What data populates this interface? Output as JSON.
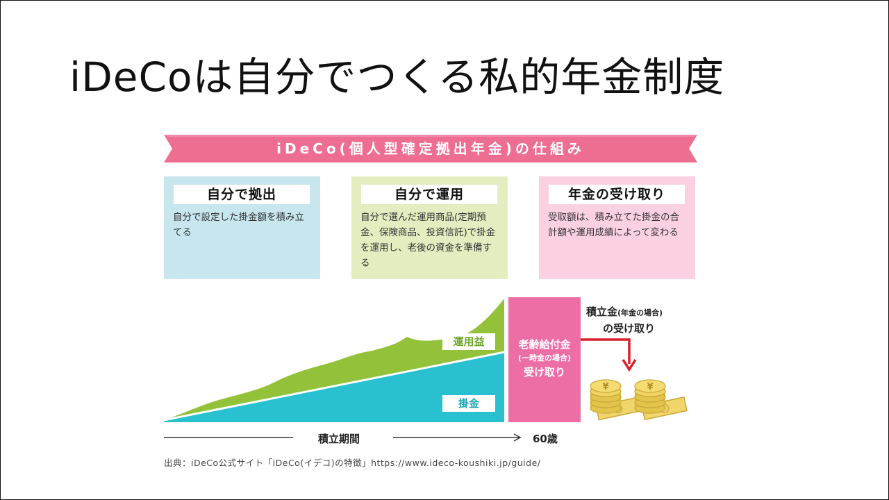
{
  "slide": {
    "title": "iDeCoは自分でつくる私的年金制度"
  },
  "diagram": {
    "banner": "iDeCo(個人型確定拠出年金)の仕組み",
    "boxes": [
      {
        "heading": "自分で拠出",
        "body": "自分で設定した掛金額を積み立てる"
      },
      {
        "heading": "自分で運用",
        "body": "自分で選んだ運用商品(定期預金、保険商品、投資信託)で掛金を運用し、老後の資金を準備する"
      },
      {
        "heading": "年金の受け取り",
        "body": "受取額は、積み立てた掛金の合計額や運用成績によって変わる"
      }
    ],
    "area_labels": {
      "gain": "運用益",
      "contribution": "掛金"
    },
    "payout": {
      "line1": "老齢給付金",
      "line2": "(一時金の場合)",
      "line3": "受け取り"
    },
    "receipt": {
      "main1": "積立金",
      "note": "(年金の場合)",
      "main2": "の受け取り"
    },
    "timeline": {
      "period": "積立期間",
      "age": "60歳"
    },
    "yen_symbol": "¥",
    "colors": {
      "contribution": "#29c0cf",
      "gain": "#93c23a",
      "pink": "#ec6ea5",
      "banner": "#ee6e92",
      "arrow": "#d81f2a",
      "coin": "#e2c44a"
    }
  },
  "source": "出典：iDeCo公式サイト「iDeCo(イデコ)の特徴」https://www.ideco-koushiki.jp/guide/"
}
